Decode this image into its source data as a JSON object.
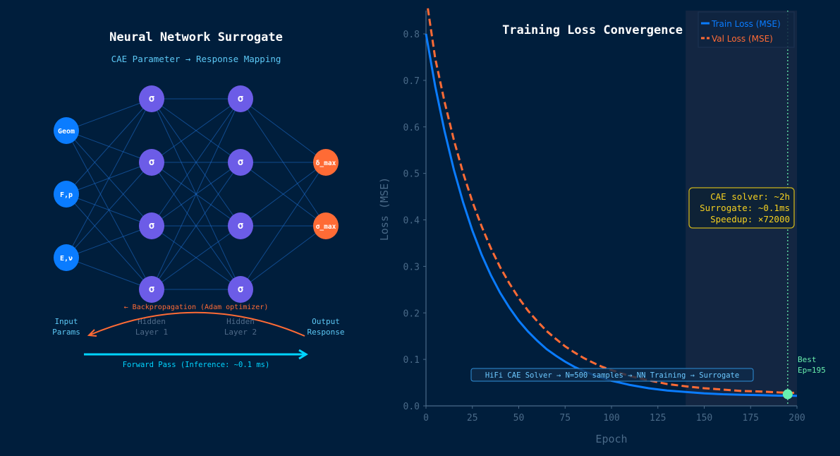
{
  "colors": {
    "background": "#001e3c",
    "input": "#0a7cff",
    "hidden": "#6c5ce7",
    "output": "#ff6b35",
    "edge": "#1f6fd0",
    "forward": "#00d4ff",
    "backprop": "#ff6b35",
    "train": "#0a7cff",
    "val": "#ff6b35",
    "best": "#69f0ae",
    "annotation": "#f5d020",
    "axis": "#4a6a88"
  },
  "diagram": {
    "title": "Neural Network Surrogate",
    "subtitle": "CAE Parameter → Response Mapping",
    "layers": [
      {
        "label": "Input\nParams",
        "kind": "input",
        "nodes": [
          "Geom",
          "F,p",
          "E,ν"
        ]
      },
      {
        "label": "Hidden\nLayer 1",
        "kind": "hidden",
        "nodes": [
          "σ",
          "σ",
          "σ",
          "σ"
        ]
      },
      {
        "label": "Hidden\nLayer 2",
        "kind": "hidden",
        "nodes": [
          "σ",
          "σ",
          "σ",
          "σ"
        ]
      },
      {
        "label": "Output\nResponse",
        "kind": "output",
        "nodes": [
          "δ_max",
          "σ_max"
        ]
      }
    ],
    "backprop_label": "← Backpropagation (Adam optimizer)",
    "forward_label": "Forward Pass (Inference: ~0.1 ms)"
  },
  "chart_data": {
    "type": "line",
    "title": "Training Loss Convergence",
    "xlabel": "Epoch",
    "ylabel": "Loss (MSE)",
    "xlim": [
      0,
      200
    ],
    "ylim": [
      0,
      0.85
    ],
    "xticks": [
      0,
      25,
      50,
      75,
      100,
      125,
      150,
      175,
      200
    ],
    "yticks": [
      "0.0",
      "0.1",
      "0.2",
      "0.3",
      "0.4",
      "0.5",
      "0.6",
      "0.7",
      "0.8"
    ],
    "grid": false,
    "legend": "top-right",
    "x": [
      0,
      5,
      10,
      15,
      20,
      25,
      30,
      35,
      40,
      45,
      50,
      55,
      60,
      65,
      70,
      75,
      80,
      85,
      90,
      95,
      100,
      110,
      120,
      130,
      140,
      150,
      160,
      170,
      180,
      190,
      200
    ],
    "series": [
      {
        "name": "Train Loss (MSE)",
        "style": "solid",
        "values": [
          0.8,
          0.687,
          0.591,
          0.508,
          0.438,
          0.377,
          0.325,
          0.281,
          0.243,
          0.211,
          0.183,
          0.16,
          0.14,
          0.122,
          0.108,
          0.095,
          0.084,
          0.075,
          0.067,
          0.06,
          0.054,
          0.045,
          0.038,
          0.033,
          0.03,
          0.027,
          0.025,
          0.024,
          0.023,
          0.022,
          0.0215
        ]
      },
      {
        "name": "Val Loss (MSE)",
        "style": "dashed",
        "values": [
          0.855,
          0.747,
          0.654,
          0.572,
          0.501,
          0.439,
          0.386,
          0.339,
          0.298,
          0.263,
          0.232,
          0.205,
          0.182,
          0.161,
          0.144,
          0.128,
          0.115,
          0.103,
          0.093,
          0.084,
          0.077,
          0.064,
          0.055,
          0.047,
          0.042,
          0.038,
          0.035,
          0.032,
          0.031,
          0.029,
          0.028
        ]
      }
    ],
    "shaded_region": [
      140,
      200
    ],
    "best": {
      "epoch": 195,
      "loss": 0.025,
      "label_line1": "Best",
      "label_line2": "Ep=195"
    },
    "annotation_box": [
      "CAE solver: ~2h",
      "Surrogate: ~0.1ms",
      "Speedup: ×72000"
    ],
    "pipeline_label": "HiFi CAE Solver → N=500 samples → NN Training → Surrogate"
  }
}
